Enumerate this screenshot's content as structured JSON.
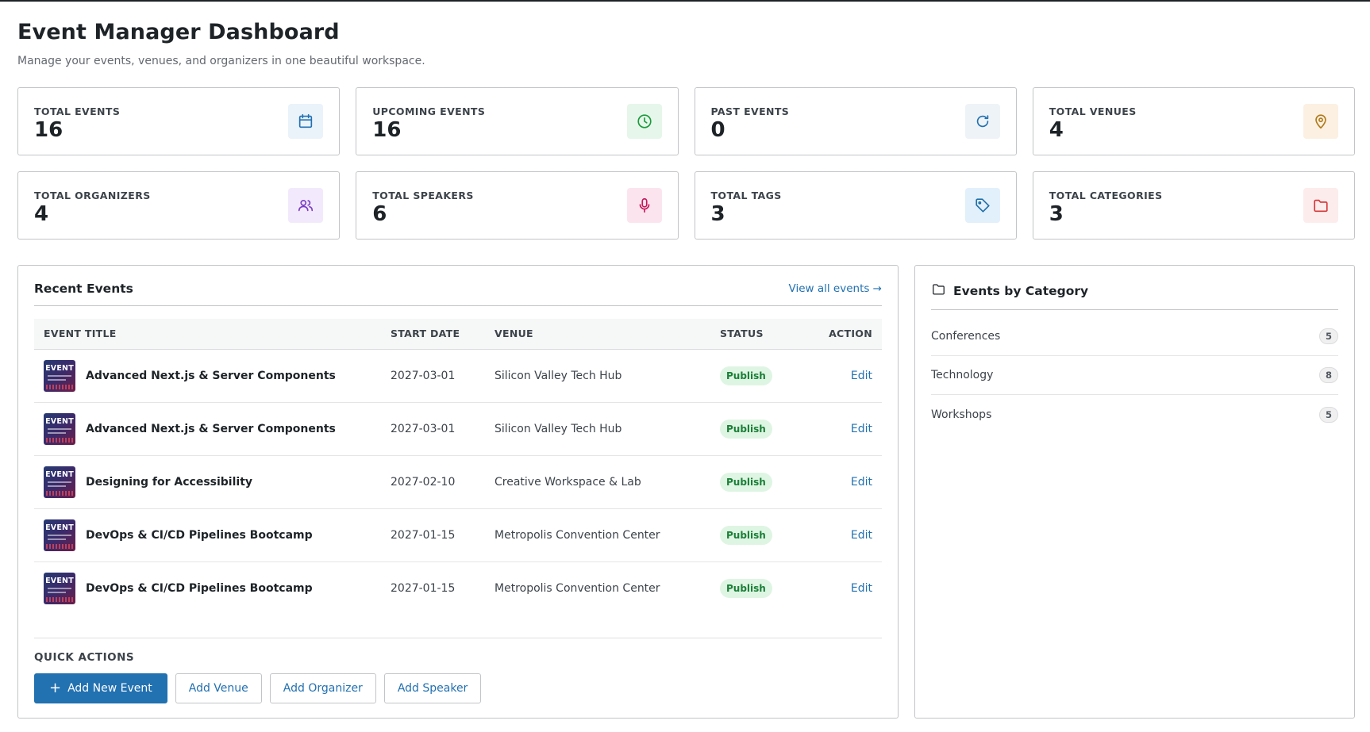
{
  "page": {
    "title": "Event Manager Dashboard",
    "subtitle": "Manage your events, venues, and organizers in one beautiful workspace."
  },
  "stats": [
    {
      "label": "TOTAL EVENTS",
      "value": "16",
      "icon": "calendar-icon",
      "color": "#2271b1",
      "bg": "#eaf2fa"
    },
    {
      "label": "UPCOMING EVENTS",
      "value": "16",
      "icon": "clock-icon",
      "color": "#1a9a3c",
      "bg": "#e6f6ea"
    },
    {
      "label": "PAST EVENTS",
      "value": "0",
      "icon": "refresh-icon",
      "color": "#2271b1",
      "bg": "#eef3f8"
    },
    {
      "label": "TOTAL VENUES",
      "value": "4",
      "icon": "map-pin-icon",
      "color": "#b07a1a",
      "bg": "#fcf0e2"
    },
    {
      "label": "TOTAL ORGANIZERS",
      "value": "4",
      "icon": "users-icon",
      "color": "#7a3fc4",
      "bg": "#f3e9fc"
    },
    {
      "label": "TOTAL SPEAKERS",
      "value": "6",
      "icon": "microphone-icon",
      "color": "#c2185b",
      "bg": "#fce4ee"
    },
    {
      "label": "TOTAL TAGS",
      "value": "3",
      "icon": "tag-icon",
      "color": "#1f6fa8",
      "bg": "#e2f0fb"
    },
    {
      "label": "TOTAL CATEGORIES",
      "value": "3",
      "icon": "folder-icon",
      "color": "#d63638",
      "bg": "#fdecec"
    }
  ],
  "recent": {
    "title": "Recent Events",
    "view_all": "View all events →",
    "columns": [
      "EVENT TITLE",
      "START DATE",
      "VENUE",
      "STATUS",
      "ACTION"
    ],
    "thumb_label": "EVENT",
    "rows": [
      {
        "title": "Advanced Next.js & Server Components",
        "date": "2027-03-01",
        "venue": "Silicon Valley Tech Hub",
        "status": "Publish",
        "action": "Edit"
      },
      {
        "title": "Advanced Next.js & Server Components",
        "date": "2027-03-01",
        "venue": "Silicon Valley Tech Hub",
        "status": "Publish",
        "action": "Edit"
      },
      {
        "title": "Designing for Accessibility",
        "date": "2027-02-10",
        "venue": "Creative Workspace & Lab",
        "status": "Publish",
        "action": "Edit"
      },
      {
        "title": "DevOps & CI/CD Pipelines Bootcamp",
        "date": "2027-01-15",
        "venue": "Metropolis Convention Center",
        "status": "Publish",
        "action": "Edit"
      },
      {
        "title": "DevOps & CI/CD Pipelines Bootcamp",
        "date": "2027-01-15",
        "venue": "Metropolis Convention Center",
        "status": "Publish",
        "action": "Edit"
      }
    ]
  },
  "quick_actions": {
    "label": "QUICK ACTIONS",
    "add_event": "Add New Event",
    "add_venue": "Add Venue",
    "add_organizer": "Add Organizer",
    "add_speaker": "Add Speaker"
  },
  "categories": {
    "title": "Events by Category",
    "items": [
      {
        "name": "Conferences",
        "count": "5"
      },
      {
        "name": "Technology",
        "count": "8"
      },
      {
        "name": "Workshops",
        "count": "5"
      }
    ]
  }
}
